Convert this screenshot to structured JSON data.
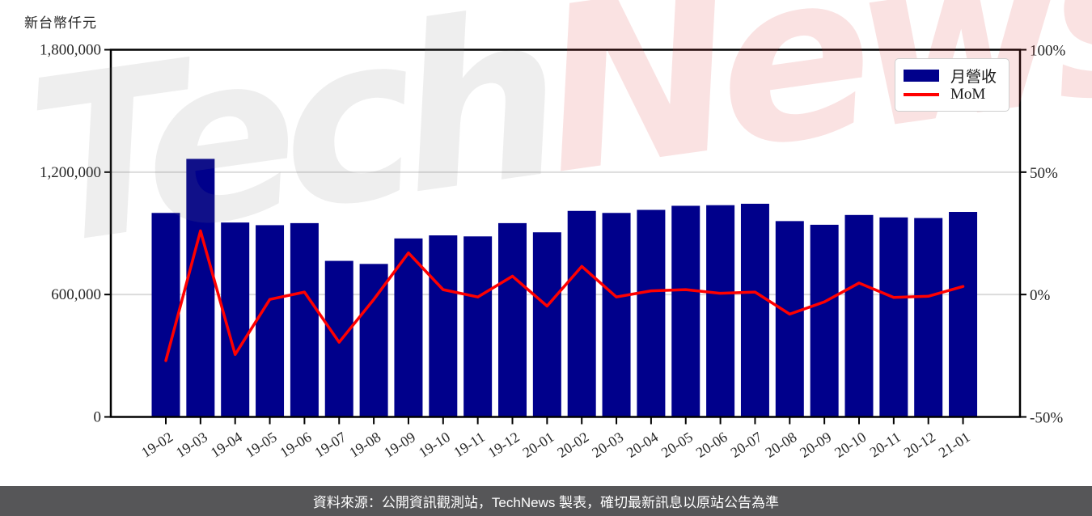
{
  "page": {
    "footer": {
      "text": "資料來源：公開資訊觀測站，TechNews 製表，確切最新訊息以原站公告為準",
      "bg": "#565658",
      "color": "#ffffff"
    }
  },
  "watermark": {
    "text_left": "Tech",
    "text_right": "News",
    "left_color": "rgba(125,125,125,0.13)",
    "right_color": "rgba(219,48,48,0.14)"
  },
  "legend": {
    "items": [
      {
        "label": "月營收",
        "type": "bar",
        "color": "#00008B"
      },
      {
        "label": "MoM",
        "type": "line",
        "color": "#FF0000"
      }
    ]
  },
  "chart_data": {
    "type": "bar",
    "title": "",
    "categories": [
      "19-02",
      "19-03",
      "19-04",
      "19-05",
      "19-06",
      "19-07",
      "19-08",
      "19-09",
      "19-10",
      "19-11",
      "19-12",
      "20-01",
      "20-02",
      "20-03",
      "20-04",
      "20-05",
      "20-06",
      "20-07",
      "20-08",
      "20-09",
      "20-10",
      "20-11",
      "20-12",
      "21-01"
    ],
    "series": [
      {
        "name": "月營收",
        "type": "bar",
        "axis": "left",
        "color": "#00008B",
        "values": [
          1000000,
          1265000,
          953000,
          940000,
          950000,
          765000,
          750000,
          875000,
          890000,
          885000,
          950000,
          905000,
          1010000,
          1000000,
          1015000,
          1035000,
          1038000,
          1045000,
          960000,
          942000,
          990000,
          978000,
          975000,
          1005000
        ]
      },
      {
        "name": "MoM",
        "type": "line",
        "axis": "right",
        "color": "#FF0000",
        "values_pct": [
          -27,
          26,
          -24.5,
          -2,
          1,
          -19.5,
          -2,
          17,
          2,
          -1,
          7.5,
          -4.7,
          11.5,
          -1,
          1.5,
          2,
          0.5,
          1,
          -8,
          -3,
          4.7,
          -1.2,
          -0.7,
          3.3
        ]
      }
    ],
    "left_axis": {
      "unit": "新台幣仟元",
      "range": [
        0,
        1800000
      ],
      "tick_values": [
        0,
        600000,
        1200000,
        1800000
      ],
      "tick_labels": [
        "0",
        "600,000",
        "1,200,000",
        "1,800,000"
      ]
    },
    "right_axis": {
      "range": [
        -50,
        100
      ],
      "tick_values": [
        -50,
        0,
        50,
        100
      ],
      "tick_labels": [
        "-50%",
        "0%",
        "50%",
        "100%"
      ]
    },
    "grid": {
      "horizontal_at": [
        600000,
        1200000
      ],
      "color": "#dcdcdc"
    },
    "legend_position": "upper right",
    "text_color": "#262626",
    "spine_color": "#000000"
  }
}
